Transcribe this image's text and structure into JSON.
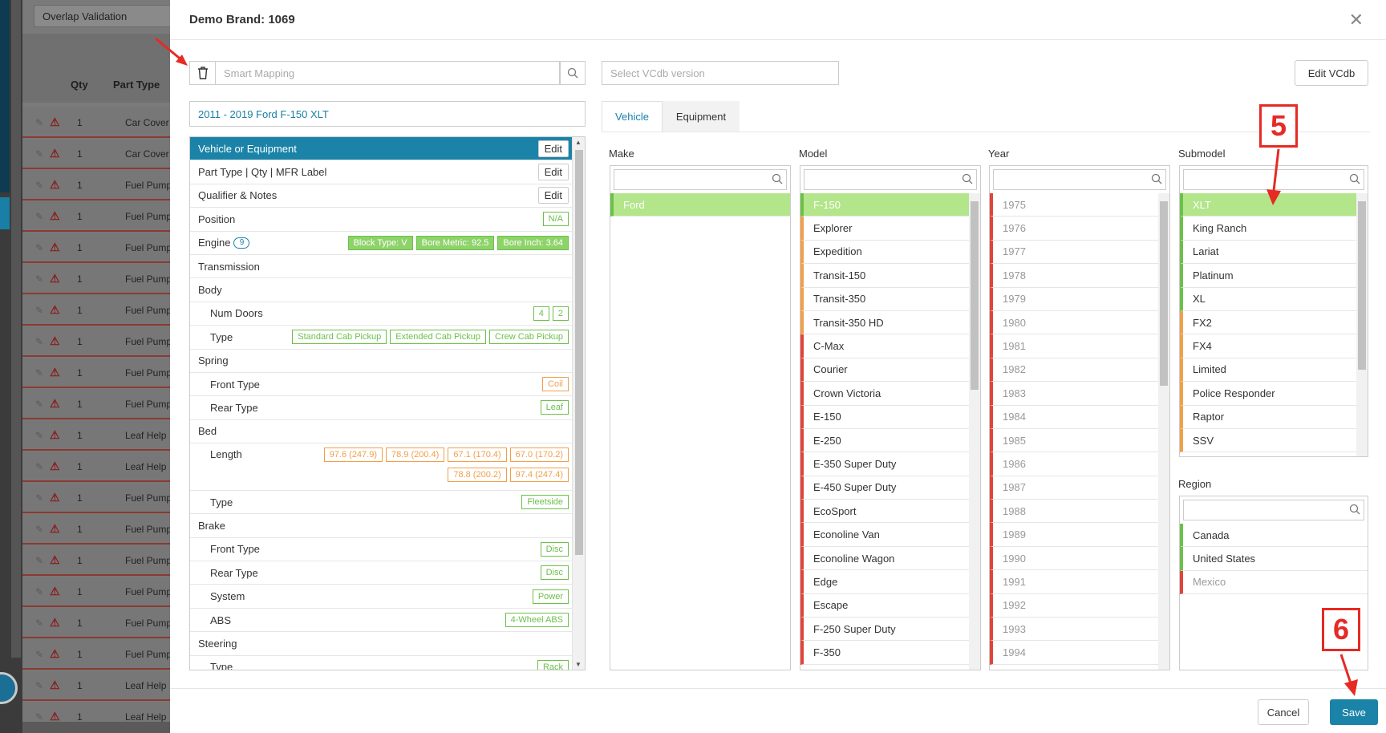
{
  "background": {
    "dropdown_value": "Overlap Validation",
    "col_qty": "Qty",
    "col_part_type": "Part Type",
    "rows": [
      {
        "qty": "1",
        "part_type": "Car Cover"
      },
      {
        "qty": "1",
        "part_type": "Car Cover"
      },
      {
        "qty": "1",
        "part_type": "Fuel Pump"
      },
      {
        "qty": "1",
        "part_type": "Fuel Pump"
      },
      {
        "qty": "1",
        "part_type": "Fuel Pump"
      },
      {
        "qty": "1",
        "part_type": "Fuel Pump"
      },
      {
        "qty": "1",
        "part_type": "Fuel Pump"
      },
      {
        "qty": "1",
        "part_type": "Fuel Pump"
      },
      {
        "qty": "1",
        "part_type": "Fuel Pump"
      },
      {
        "qty": "1",
        "part_type": "Fuel Pump"
      },
      {
        "qty": "1",
        "part_type": "Leaf Help"
      },
      {
        "qty": "1",
        "part_type": "Leaf Help"
      },
      {
        "qty": "1",
        "part_type": "Fuel Pump"
      },
      {
        "qty": "1",
        "part_type": "Fuel Pump"
      },
      {
        "qty": "1",
        "part_type": "Fuel Pump"
      },
      {
        "qty": "1",
        "part_type": "Fuel Pump"
      },
      {
        "qty": "1",
        "part_type": "Fuel Pump"
      },
      {
        "qty": "1",
        "part_type": "Fuel Pump"
      },
      {
        "qty": "1",
        "part_type": "Leaf Help"
      },
      {
        "qty": "1",
        "part_type": "Leaf Help"
      }
    ]
  },
  "modal": {
    "title": "Demo Brand: 1069",
    "smart_mapping_placeholder": "Smart Mapping",
    "vcdb_placeholder": "Select VCdb version",
    "edit_vcdb_label": "Edit VCdb",
    "vehicle_text": "2011 - 2019 Ford F-150 XLT",
    "edit_label": "Edit",
    "cancel_label": "Cancel",
    "save_label": "Save"
  },
  "attributes": {
    "vehicle_or_equipment": "Vehicle or Equipment",
    "part_type_qty": "Part Type | Qty | MFR Label",
    "qualifier_notes": "Qualifier & Notes",
    "position": "Position",
    "position_tag": "N/A",
    "engine": "Engine",
    "engine_count": "9",
    "engine_tags": [
      "Block Type: V",
      "Bore Metric: 92.5",
      "Bore Inch: 3.64"
    ],
    "transmission": "Transmission",
    "body": "Body",
    "num_doors": "Num Doors",
    "num_doors_tags": [
      "4",
      "2"
    ],
    "body_type": "Type",
    "body_type_tags": [
      "Standard Cab Pickup",
      "Extended Cab Pickup",
      "Crew Cab Pickup"
    ],
    "spring": "Spring",
    "spring_front": "Front Type",
    "spring_front_tag": "Coil",
    "spring_rear": "Rear Type",
    "spring_rear_tag": "Leaf",
    "bed": "Bed",
    "bed_length": "Length",
    "bed_length_tags": [
      "97.6 (247.9)",
      "78.9 (200.4)",
      "67.1 (170.4)",
      "67.0 (170.2)",
      "78.8 (200.2)"
    ],
    "bed_length_tag_extra": "97.4 (247.4)",
    "bed_type": "Type",
    "bed_type_tag": "Fleetside",
    "brake": "Brake",
    "brake_front": "Front Type",
    "brake_front_tag": "Disc",
    "brake_rear": "Rear Type",
    "brake_rear_tag": "Disc",
    "brake_system": "System",
    "brake_system_tag": "Power",
    "abs": "ABS",
    "abs_tag": "4-Wheel ABS",
    "steering": "Steering",
    "steering_type": "Type",
    "steering_type_tag": "Rack"
  },
  "tabs": {
    "vehicle": "Vehicle",
    "equipment": "Equipment"
  },
  "columns": {
    "make": {
      "label": "Make",
      "items": [
        {
          "text": "Ford",
          "state": "sel"
        }
      ]
    },
    "model": {
      "label": "Model",
      "items": [
        {
          "text": "F-150",
          "state": "sel"
        },
        {
          "text": "Explorer",
          "state": "orange"
        },
        {
          "text": "Expedition",
          "state": "orange"
        },
        {
          "text": "Transit-150",
          "state": "orange"
        },
        {
          "text": "Transit-350",
          "state": "orange"
        },
        {
          "text": "Transit-350 HD",
          "state": "orange"
        },
        {
          "text": "C-Max",
          "state": "red"
        },
        {
          "text": "Courier",
          "state": "red"
        },
        {
          "text": "Crown Victoria",
          "state": "red"
        },
        {
          "text": "E-150",
          "state": "red"
        },
        {
          "text": "E-250",
          "state": "red"
        },
        {
          "text": "E-350 Super Duty",
          "state": "red"
        },
        {
          "text": "E-450 Super Duty",
          "state": "red"
        },
        {
          "text": "EcoSport",
          "state": "red"
        },
        {
          "text": "Econoline Van",
          "state": "red"
        },
        {
          "text": "Econoline Wagon",
          "state": "red"
        },
        {
          "text": "Edge",
          "state": "red"
        },
        {
          "text": "Escape",
          "state": "red"
        },
        {
          "text": "F-250 Super Duty",
          "state": "red"
        },
        {
          "text": "F-350",
          "state": "red"
        }
      ]
    },
    "year": {
      "label": "Year",
      "items": [
        "1975",
        "1976",
        "1977",
        "1978",
        "1979",
        "1980",
        "1981",
        "1982",
        "1983",
        "1984",
        "1985",
        "1986",
        "1987",
        "1988",
        "1989",
        "1990",
        "1991",
        "1992",
        "1993",
        "1994"
      ]
    },
    "submodel": {
      "label": "Submodel",
      "items": [
        {
          "text": "XLT",
          "state": "sel"
        },
        {
          "text": "King Ranch",
          "state": "green"
        },
        {
          "text": "Lariat",
          "state": "green"
        },
        {
          "text": "Platinum",
          "state": "green"
        },
        {
          "text": "XL",
          "state": "green"
        },
        {
          "text": "FX2",
          "state": "orange"
        },
        {
          "text": "FX4",
          "state": "orange"
        },
        {
          "text": "Limited",
          "state": "orange"
        },
        {
          "text": "Police Responder",
          "state": "orange"
        },
        {
          "text": "Raptor",
          "state": "orange"
        },
        {
          "text": "SSV",
          "state": "orange"
        }
      ]
    },
    "region": {
      "label": "Region",
      "items": [
        {
          "text": "Canada",
          "state": "green"
        },
        {
          "text": "United States",
          "state": "green"
        },
        {
          "text": "Mexico",
          "state": "red"
        }
      ]
    }
  },
  "annotations": {
    "step5": "5",
    "step6": "6"
  },
  "colors": {
    "accent": "#1b83a8",
    "selected": "#b3e58a",
    "green": "#6cc04a",
    "orange": "#f0a04b",
    "red": "#e0453a",
    "annotation": "#e62a24"
  }
}
